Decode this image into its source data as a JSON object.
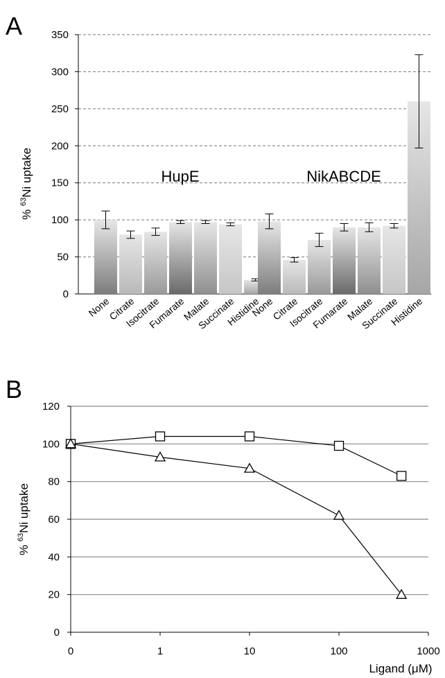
{
  "chart_data": [
    {
      "panel": "A",
      "type": "bar",
      "ylabel_prefix": "% ",
      "ylabel_sup": "63",
      "ylabel_rest": "Ni uptake",
      "ylim": [
        0,
        350
      ],
      "yticks": [
        0,
        50,
        100,
        150,
        200,
        250,
        300,
        350
      ],
      "grid": true,
      "groups": [
        {
          "name": "HupE",
          "categories": [
            "None",
            "Citrate",
            "Isocitrate",
            "Fumarate",
            "Malate",
            "Succinate",
            "Histidine"
          ],
          "values": [
            100,
            80,
            84,
            97,
            97,
            94,
            19
          ],
          "errors": [
            12,
            5,
            5,
            2,
            2,
            2,
            1.5
          ],
          "colors": [
            "#7d7d7d",
            "#b9b9b9",
            "#9a9a9a",
            "#6a6a6a",
            "#8f8f8f",
            "#c6c6c6",
            "#a6a6a6"
          ]
        },
        {
          "name": "NikABCDE",
          "categories": [
            "None",
            "Citrate",
            "Isocitrate",
            "Fumarate",
            "Malate",
            "Succinate",
            "Histidine"
          ],
          "values": [
            98,
            46,
            73,
            90,
            90,
            92,
            260
          ],
          "errors": [
            10,
            3,
            9,
            5,
            6,
            3,
            63
          ],
          "colors": [
            "#7d7d7d",
            "#b9b9b9",
            "#9a9a9a",
            "#6a6a6a",
            "#8f8f8f",
            "#c6c6c6",
            "#a6a6a6"
          ]
        }
      ]
    },
    {
      "panel": "B",
      "type": "line",
      "xscale": "log",
      "xlabel": "Ligand  (μM)",
      "ylabel_prefix": "% ",
      "ylabel_sup": "63",
      "ylabel_rest": "Ni uptake",
      "xticks": [
        "0",
        "1",
        "10",
        "100",
        "1000"
      ],
      "ylim": [
        0,
        120
      ],
      "yticks": [
        0,
        20,
        40,
        60,
        80,
        100,
        120
      ],
      "grid": true,
      "series": [
        {
          "marker": "square",
          "x": [
            0,
            1,
            10,
            100,
            500
          ],
          "y": [
            100,
            104,
            104,
            99,
            83
          ]
        },
        {
          "marker": "triangle",
          "x": [
            0,
            1,
            10,
            100,
            500
          ],
          "y": [
            100,
            93,
            87,
            62,
            20
          ]
        }
      ]
    }
  ]
}
